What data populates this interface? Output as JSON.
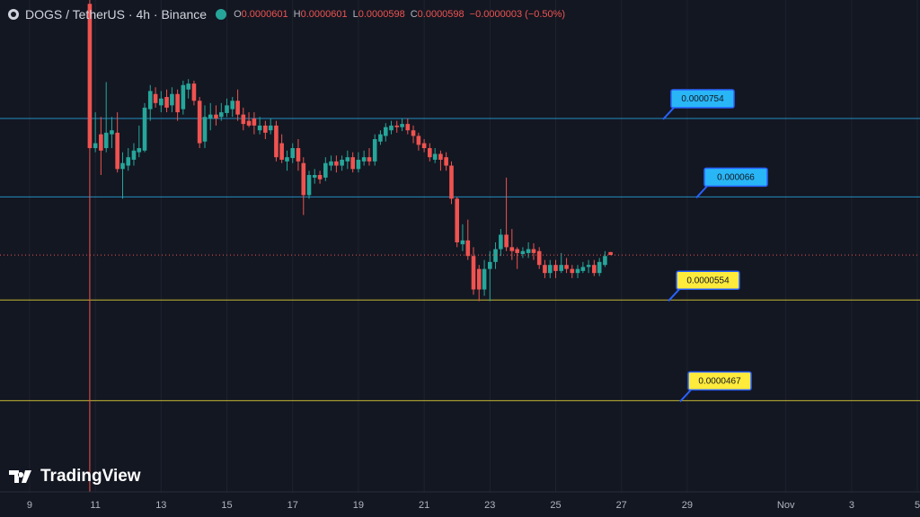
{
  "header": {
    "symbol": "DOGS / TetherUS · 4h · Binance",
    "ohlc": [
      {
        "label": "O",
        "value": 6.01e-05
      },
      {
        "label": "H",
        "value": 6.01e-05
      },
      {
        "label": "L",
        "value": 5.98e-05
      },
      {
        "label": "C",
        "value": 5.98e-05
      }
    ],
    "change": "−0.0000003 (−0.50%)"
  },
  "watermark": "TradingView",
  "chart_data": {
    "type": "candlestick",
    "log_scale": true,
    "grid": true,
    "up_color": "#26a69a",
    "down_color": "#ef5350",
    "xlim": [
      8.1,
      36.08
    ],
    "ylim": [
      4e-05,
      9.22e-05
    ],
    "xticks": [
      9,
      11,
      13,
      15,
      17,
      19,
      21,
      23,
      25,
      27,
      29,
      {
        "value": 32,
        "label": "Nov"
      },
      {
        "value": 34,
        "label": "3"
      },
      {
        "value": 36,
        "label": "5"
      }
    ],
    "x": [
      10.83,
      11,
      11.17,
      11.33,
      11.5,
      11.67,
      11.83,
      12,
      12.17,
      12.33,
      12.5,
      12.67,
      12.83,
      13,
      13.17,
      13.33,
      13.5,
      13.67,
      13.83,
      14,
      14.17,
      14.33,
      14.5,
      14.67,
      14.83,
      15,
      15.17,
      15.33,
      15.5,
      15.67,
      15.83,
      16,
      16.17,
      16.33,
      16.5,
      16.67,
      16.83,
      17,
      17.17,
      17.33,
      17.5,
      17.67,
      17.83,
      18,
      18.17,
      18.33,
      18.5,
      18.67,
      18.83,
      19,
      19.17,
      19.33,
      19.5,
      19.67,
      19.83,
      20,
      20.17,
      20.33,
      20.5,
      20.67,
      20.83,
      21,
      21.17,
      21.33,
      21.5,
      21.67,
      21.83,
      22,
      22.17,
      22.33,
      22.5,
      22.67,
      22.83,
      23,
      23.17,
      23.33,
      23.5,
      23.67,
      23.83,
      24,
      24.17,
      24.33,
      24.5,
      24.67,
      24.83,
      25,
      25.17,
      25.33,
      25.5,
      25.67,
      25.83,
      26,
      26.17,
      26.33,
      26.5,
      26.67
    ],
    "open": [
      9.16e-05,
      7.17e-05,
      7.34e-05,
      7.17e-05,
      7.34e-05,
      7.36e-05,
      6.92e-05,
      6.96e-05,
      7.03e-05,
      7.12e-05,
      7.14e-05,
      7.66e-05,
      7.86e-05,
      7.71e-05,
      7.82e-05,
      7.71e-05,
      7.86e-05,
      7.66e-05,
      7.92e-05,
      8e-05,
      7.77e-05,
      7.25e-05,
      7.54e-05,
      7.59e-05,
      7.56e-05,
      7.61e-05,
      7.66e-05,
      7.77e-05,
      7.59e-05,
      7.51e-05,
      7.54e-05,
      7.39e-05,
      7.45e-05,
      7.39e-05,
      7.45e-05,
      7.23e-05,
      7.01e-05,
      7.05e-05,
      7.17e-05,
      6.99e-05,
      6.62e-05,
      6.82e-05,
      6.85e-05,
      6.82e-05,
      6.96e-05,
      7.01e-05,
      6.96e-05,
      7.01e-05,
      7.06e-05,
      6.92e-05,
      7.01e-05,
      7.06e-05,
      7.01e-05,
      7.25e-05,
      7.32e-05,
      7.39e-05,
      7.45e-05,
      7.43e-05,
      7.47e-05,
      7.39e-05,
      7.32e-05,
      7.23e-05,
      7.17e-05,
      7.03e-05,
      7.1e-05,
      7.06e-05,
      6.96e-05,
      6.58e-05,
      6.09e-05,
      6.13e-05,
      5.97e-05,
      5.84e-05,
      5.64e-05,
      5.84e-05,
      5.91e-05,
      6.04e-05,
      6.19e-05,
      6.06e-05,
      6.04e-05,
      5.99e-05,
      6e-05,
      6.04e-05,
      6.02e-05,
      5.88e-05,
      5.8e-05,
      5.88e-05,
      5.82e-05,
      5.88e-05,
      5.84e-05,
      5.8e-05,
      5.82e-05,
      5.86e-05,
      5.88e-05,
      5.8e-05,
      5.88e-05,
      6.01e-05
    ],
    "high": [
      9.36e-05,
      7.62e-05,
      7.56e-05,
      8.02e-05,
      7.56e-05,
      7.62e-05,
      7.12e-05,
      7.17e-05,
      7.23e-05,
      7.45e-05,
      7.74e-05,
      7.98e-05,
      7.95e-05,
      7.9e-05,
      7.92e-05,
      7.95e-05,
      7.92e-05,
      8.04e-05,
      8.06e-05,
      8.04e-05,
      7.82e-05,
      7.71e-05,
      7.74e-05,
      7.71e-05,
      7.74e-05,
      7.8e-05,
      7.82e-05,
      7.92e-05,
      7.68e-05,
      7.62e-05,
      7.62e-05,
      7.56e-05,
      7.51e-05,
      7.54e-05,
      7.51e-05,
      7.34e-05,
      7.14e-05,
      7.23e-05,
      7.28e-05,
      7.06e-05,
      6.9e-05,
      6.92e-05,
      6.9e-05,
      7.06e-05,
      7.08e-05,
      7.08e-05,
      7.08e-05,
      7.14e-05,
      7.12e-05,
      7.12e-05,
      7.14e-05,
      7.17e-05,
      7.34e-05,
      7.39e-05,
      7.48e-05,
      7.51e-05,
      7.51e-05,
      7.54e-05,
      7.54e-05,
      7.45e-05,
      7.36e-05,
      7.28e-05,
      7.23e-05,
      7.17e-05,
      7.14e-05,
      7.12e-05,
      7.01e-05,
      6.6e-05,
      6.3e-05,
      6.35e-05,
      6.06e-05,
      5.88e-05,
      5.93e-05,
      6.02e-05,
      6.11e-05,
      6.25e-05,
      6.82e-05,
      6.25e-05,
      6.06e-05,
      6.06e-05,
      6.11e-05,
      6.1e-05,
      6.06e-05,
      5.93e-05,
      5.93e-05,
      5.93e-05,
      6e-05,
      5.95e-05,
      5.88e-05,
      5.88e-05,
      5.91e-05,
      5.93e-05,
      5.93e-05,
      5.95e-05,
      6.02e-05,
      6.01e-05
    ],
    "low": [
      4e-05,
      7.12e-05,
      6.85e-05,
      7.12e-05,
      7.17e-05,
      6.88e-05,
      6.58e-05,
      6.9e-05,
      6.96e-05,
      7.06e-05,
      7.12e-05,
      7.51e-05,
      7.68e-05,
      7.62e-05,
      7.62e-05,
      7.62e-05,
      7.51e-05,
      7.59e-05,
      7.8e-05,
      7.71e-05,
      7.17e-05,
      7.17e-05,
      7.39e-05,
      7.45e-05,
      7.51e-05,
      7.56e-05,
      7.56e-05,
      7.51e-05,
      7.39e-05,
      7.43e-05,
      7.34e-05,
      7.34e-05,
      7.28e-05,
      7.34e-05,
      7.01e-05,
      6.99e-05,
      6.9e-05,
      6.99e-05,
      6.9e-05,
      6.4e-05,
      6.58e-05,
      6.75e-05,
      6.75e-05,
      6.78e-05,
      6.9e-05,
      6.88e-05,
      6.9e-05,
      6.92e-05,
      6.88e-05,
      6.88e-05,
      6.96e-05,
      6.96e-05,
      6.96e-05,
      7.21e-05,
      7.25e-05,
      7.34e-05,
      7.36e-05,
      7.38e-05,
      7.34e-05,
      7.23e-05,
      7.14e-05,
      7.12e-05,
      7.01e-05,
      6.99e-05,
      6.9e-05,
      6.9e-05,
      6.52e-05,
      6.06e-05,
      6.02e-05,
      5.93e-05,
      5.59e-05,
      5.53e-05,
      5.58e-05,
      5.53e-05,
      5.84e-05,
      5.97e-05,
      6.02e-05,
      5.93e-05,
      5.84e-05,
      5.95e-05,
      5.95e-05,
      5.93e-05,
      5.84e-05,
      5.75e-05,
      5.75e-05,
      5.75e-05,
      5.8e-05,
      5.8e-05,
      5.75e-05,
      5.75e-05,
      5.8e-05,
      5.8e-05,
      5.77e-05,
      5.77e-05,
      5.86e-05,
      5.98e-05
    ],
    "close": [
      7.17e-05,
      7.23e-05,
      7.14e-05,
      7.36e-05,
      7.39e-05,
      6.92e-05,
      6.99e-05,
      7.06e-05,
      7.14e-05,
      7.17e-05,
      7.68e-05,
      7.9e-05,
      7.74e-05,
      7.8e-05,
      7.68e-05,
      7.86e-05,
      7.62e-05,
      7.98e-05,
      8e-05,
      7.77e-05,
      7.23e-05,
      7.56e-05,
      7.59e-05,
      7.54e-05,
      7.62e-05,
      7.71e-05,
      7.77e-05,
      7.59e-05,
      7.47e-05,
      7.45e-05,
      7.45e-05,
      7.45e-05,
      7.36e-05,
      7.45e-05,
      7.06e-05,
      7.03e-05,
      7.06e-05,
      7.17e-05,
      7.01e-05,
      6.62e-05,
      6.85e-05,
      6.85e-05,
      6.8e-05,
      6.99e-05,
      7.01e-05,
      6.96e-05,
      7.03e-05,
      7.06e-05,
      6.92e-05,
      7.03e-05,
      7.06e-05,
      7.01e-05,
      7.28e-05,
      7.34e-05,
      7.43e-05,
      7.45e-05,
      7.43e-05,
      7.47e-05,
      7.39e-05,
      7.32e-05,
      7.21e-05,
      7.17e-05,
      7.06e-05,
      7.1e-05,
      7.03e-05,
      6.96e-05,
      6.58e-05,
      6.11e-05,
      6.13e-05,
      5.97e-05,
      5.64e-05,
      5.64e-05,
      5.84e-05,
      5.91e-05,
      6.04e-05,
      6.19e-05,
      6.06e-05,
      6.02e-05,
      6e-05,
      6.02e-05,
      6.04e-05,
      6e-05,
      5.88e-05,
      5.8e-05,
      5.88e-05,
      5.82e-05,
      5.88e-05,
      5.84e-05,
      5.8e-05,
      5.84e-05,
      5.86e-05,
      5.88e-05,
      5.8e-05,
      5.91e-05,
      5.97e-05,
      5.98e-05
    ],
    "levels": [
      {
        "value": 7.54e-05,
        "color": "#29b6f6"
      },
      {
        "value": 6.6e-05,
        "color": "#29b6f6"
      },
      {
        "value": 5.54e-05,
        "color": "#ffeb3b"
      },
      {
        "value": 4.67e-05,
        "color": "#ffeb3b"
      }
    ]
  }
}
